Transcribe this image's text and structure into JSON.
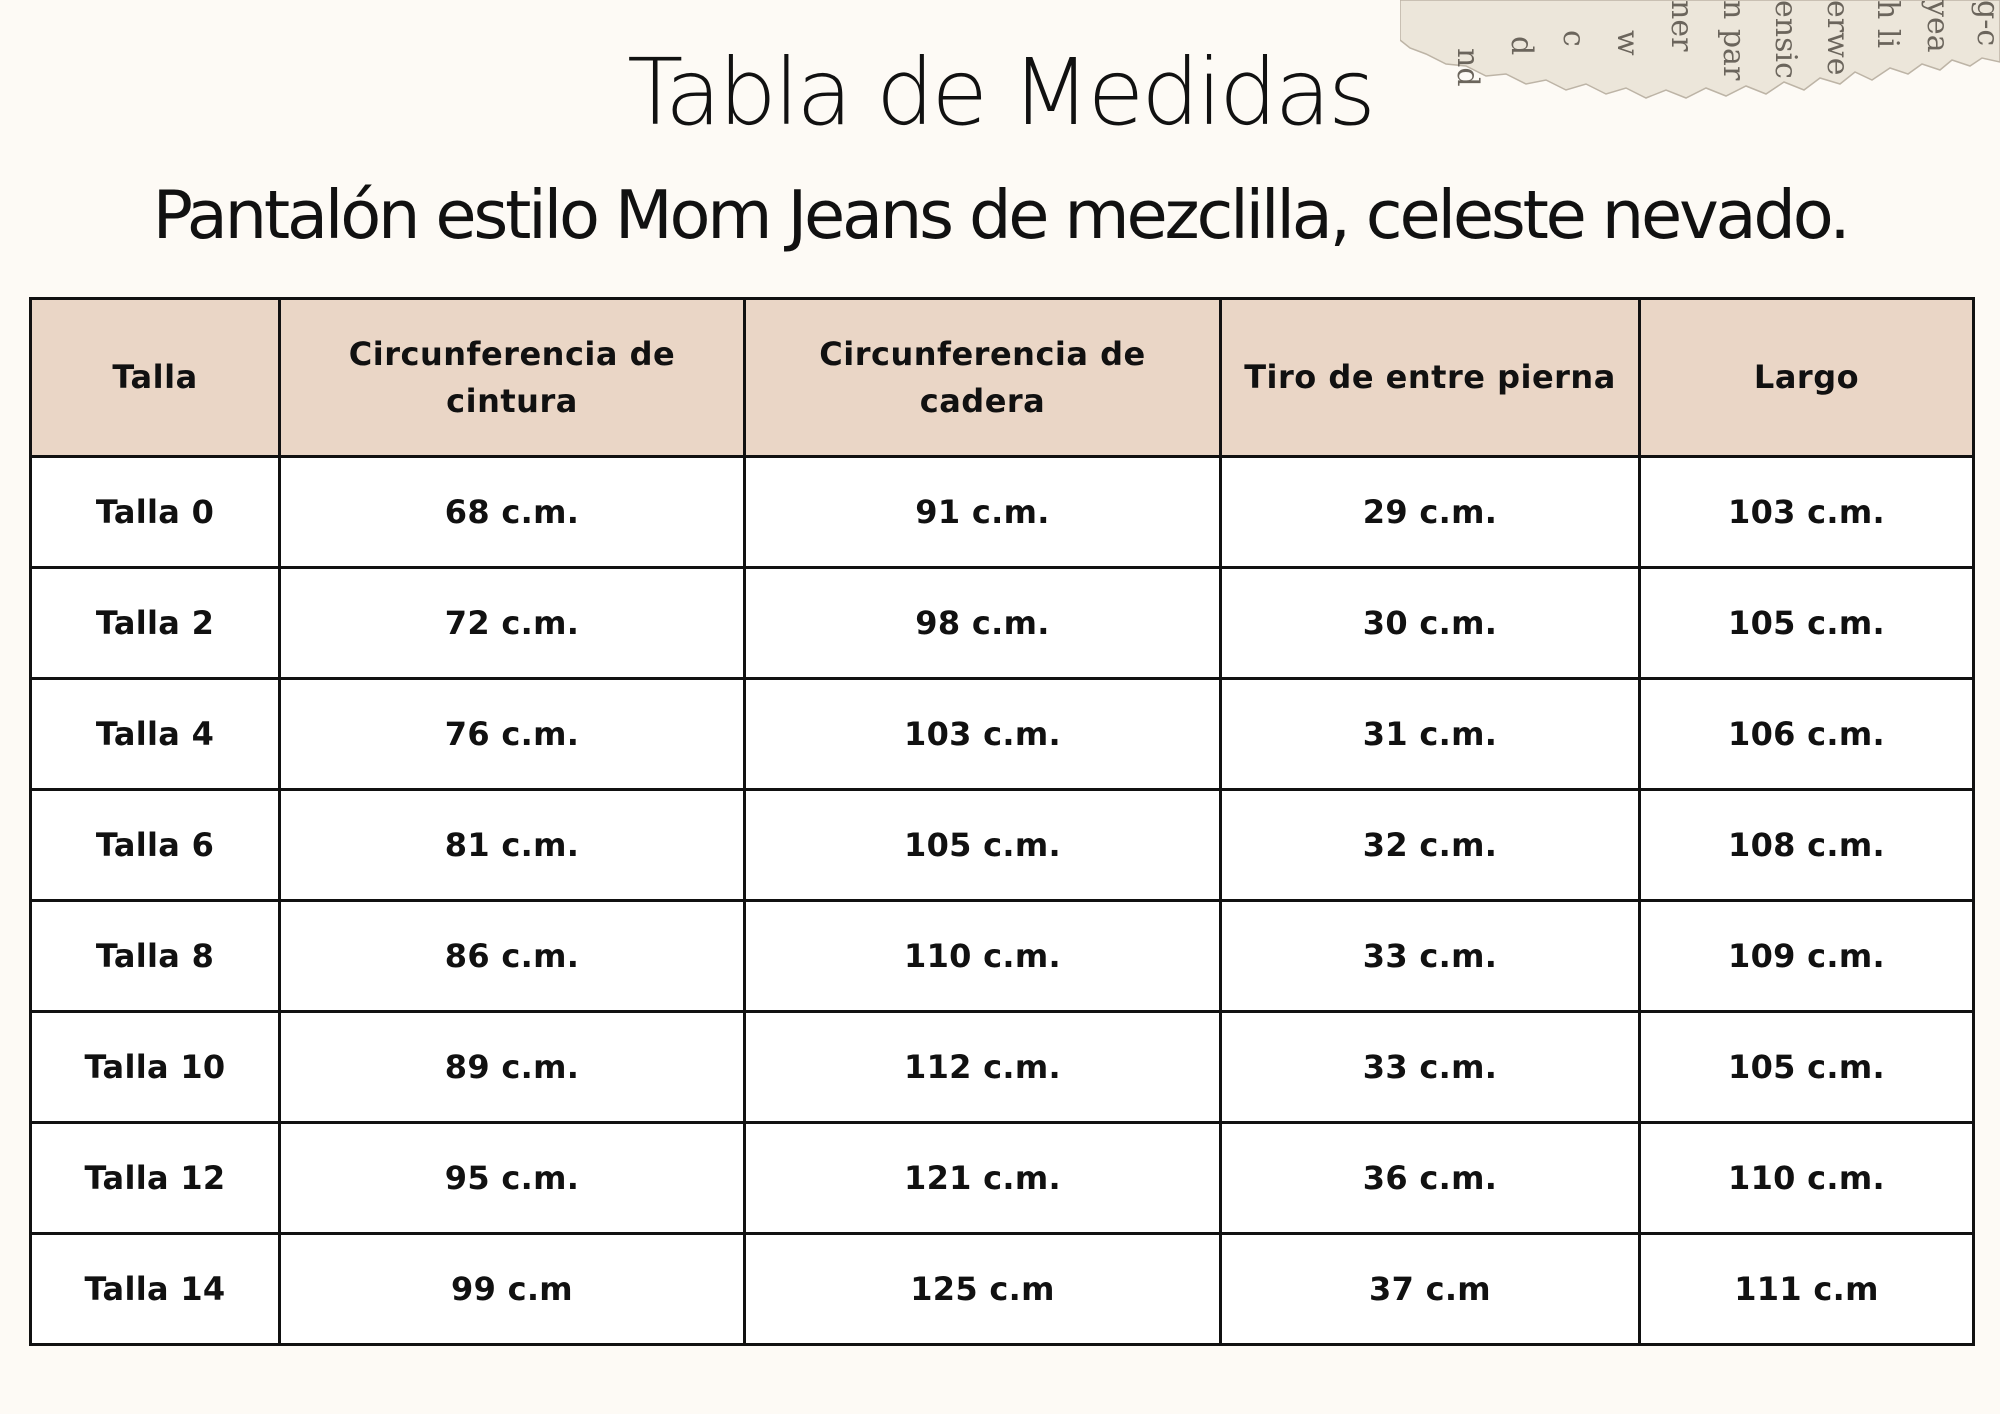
{
  "title": "Tabla de Medidas",
  "subtitle": "Pantalón estilo Mom Jeans de mezclilla, celeste nevado.",
  "table": {
    "headers": [
      "Talla",
      "Circunferencia  de cintura",
      "Circunferencia de cadera",
      "Tiro de entre pierna",
      "Largo"
    ],
    "rows": [
      [
        "Talla 0",
        "68 c.m.",
        "91 c.m.",
        "29 c.m.",
        "103 c.m."
      ],
      [
        "Talla 2",
        "72 c.m.",
        "98 c.m.",
        "30 c.m.",
        "105 c.m."
      ],
      [
        "Talla 4",
        "76 c.m.",
        "103 c.m.",
        "31 c.m.",
        "106 c.m."
      ],
      [
        "Talla 6",
        "81 c.m.",
        "105 c.m.",
        "32 c.m.",
        "108 c.m."
      ],
      [
        "Talla 8",
        "86 c.m.",
        "110 c.m.",
        "33 c.m.",
        "109 c.m."
      ],
      [
        "Talla 10",
        "89 c.m.",
        "112 c.m.",
        "33 c.m.",
        "105 c.m."
      ],
      [
        "Talla 12",
        "95 c.m.",
        "121 c.m.",
        "36 c.m.",
        "110 c.m."
      ],
      [
        "Talla 14",
        "99 c.m",
        "125 c.m",
        "37 c.m",
        "111 c.m"
      ]
    ]
  },
  "decoration": {
    "torn_paper_text": [
      "nd",
      "d",
      "c",
      "w",
      "ner",
      "n par",
      "ensic",
      "erwe",
      "h li",
      "yea",
      "g-c"
    ]
  },
  "colors": {
    "background": "#fdfaf5",
    "header_fill": "#ead6c6",
    "border": "#111111",
    "text": "#111111"
  }
}
